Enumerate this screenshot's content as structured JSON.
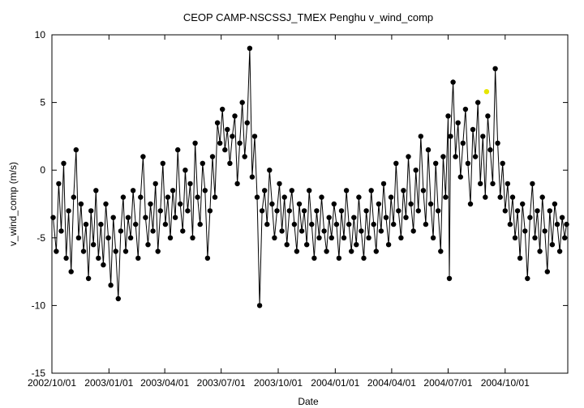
{
  "chart_data": {
    "type": "scatter",
    "title": "CEOP CAMP-NSCSSJ_TMEX Penghu  v_wind_comp",
    "xlabel": "Date",
    "ylabel": "v_wind_comp (m/s)",
    "ylim": [
      -15,
      10
    ],
    "xlim": [
      "2002-10-01",
      "2005-01-10"
    ],
    "y_ticks": [
      10,
      5,
      0,
      -5,
      -10,
      -15
    ],
    "x_ticks": [
      {
        "date": "2002-10-01",
        "label": "2002/10/01"
      },
      {
        "date": "2003-01-01",
        "label": "2003/01/01"
      },
      {
        "date": "2003-04-01",
        "label": "2003/04/01"
      },
      {
        "date": "2003-07-01",
        "label": "2003/07/01"
      },
      {
        "date": "2003-10-01",
        "label": "2003/10/01"
      },
      {
        "date": "2004-01-01",
        "label": "2004/01/01"
      },
      {
        "date": "2004-04-01",
        "label": "2004/04/01"
      },
      {
        "date": "2004-07-01",
        "label": "2004/07/01"
      },
      {
        "date": "2004-10-01",
        "label": "2004/10/01"
      }
    ],
    "grid": false,
    "series": [
      {
        "color": "#000000",
        "points": [
          [
            "2002-10-03",
            -3.5
          ],
          [
            "2002-10-08",
            -6.0
          ],
          [
            "2002-10-12",
            -1.0
          ],
          [
            "2002-10-16",
            -4.5
          ],
          [
            "2002-10-20",
            0.5
          ],
          [
            "2002-10-24",
            -6.5
          ],
          [
            "2002-10-28",
            -3.0
          ],
          [
            "2002-11-01",
            -7.5
          ],
          [
            "2002-11-05",
            -2.0
          ],
          [
            "2002-11-09",
            1.5
          ],
          [
            "2002-11-13",
            -5.0
          ],
          [
            "2002-11-17",
            -2.5
          ],
          [
            "2002-11-21",
            -6.0
          ],
          [
            "2002-11-25",
            -4.0
          ],
          [
            "2002-11-29",
            -8.0
          ],
          [
            "2002-12-03",
            -3.0
          ],
          [
            "2002-12-07",
            -5.5
          ],
          [
            "2002-12-11",
            -1.5
          ],
          [
            "2002-12-15",
            -6.5
          ],
          [
            "2002-12-19",
            -4.0
          ],
          [
            "2002-12-23",
            -7.0
          ],
          [
            "2002-12-27",
            -2.5
          ],
          [
            "2002-12-31",
            -5.0
          ],
          [
            "2003-01-04",
            -8.5
          ],
          [
            "2003-01-08",
            -3.5
          ],
          [
            "2003-01-12",
            -6.0
          ],
          [
            "2003-01-16",
            -9.5
          ],
          [
            "2003-01-20",
            -4.5
          ],
          [
            "2003-01-24",
            -2.0
          ],
          [
            "2003-01-28",
            -6.0
          ],
          [
            "2003-02-01",
            -3.5
          ],
          [
            "2003-02-05",
            -5.0
          ],
          [
            "2003-02-09",
            -1.5
          ],
          [
            "2003-02-13",
            -4.0
          ],
          [
            "2003-02-17",
            -6.5
          ],
          [
            "2003-02-21",
            -2.0
          ],
          [
            "2003-02-25",
            1.0
          ],
          [
            "2003-03-01",
            -3.5
          ],
          [
            "2003-03-05",
            -5.5
          ],
          [
            "2003-03-09",
            -2.5
          ],
          [
            "2003-03-13",
            -4.5
          ],
          [
            "2003-03-17",
            -1.0
          ],
          [
            "2003-03-21",
            -6.0
          ],
          [
            "2003-03-25",
            -3.0
          ],
          [
            "2003-03-29",
            0.5
          ],
          [
            "2003-04-02",
            -4.0
          ],
          [
            "2003-04-06",
            -2.0
          ],
          [
            "2003-04-10",
            -5.0
          ],
          [
            "2003-04-14",
            -1.5
          ],
          [
            "2003-04-18",
            -3.5
          ],
          [
            "2003-04-22",
            1.5
          ],
          [
            "2003-04-26",
            -2.5
          ],
          [
            "2003-04-30",
            -4.5
          ],
          [
            "2003-05-04",
            0.0
          ],
          [
            "2003-05-08",
            -3.0
          ],
          [
            "2003-05-12",
            -1.0
          ],
          [
            "2003-05-16",
            -5.0
          ],
          [
            "2003-05-20",
            2.0
          ],
          [
            "2003-05-24",
            -2.0
          ],
          [
            "2003-05-28",
            -4.0
          ],
          [
            "2003-06-01",
            0.5
          ],
          [
            "2003-06-05",
            -1.5
          ],
          [
            "2003-06-09",
            -6.5
          ],
          [
            "2003-06-13",
            -3.0
          ],
          [
            "2003-06-17",
            1.0
          ],
          [
            "2003-06-21",
            -2.0
          ],
          [
            "2003-06-25",
            3.5
          ],
          [
            "2003-06-29",
            2.0
          ],
          [
            "2003-07-03",
            4.5
          ],
          [
            "2003-07-07",
            1.5
          ],
          [
            "2003-07-11",
            3.0
          ],
          [
            "2003-07-15",
            0.5
          ],
          [
            "2003-07-19",
            2.5
          ],
          [
            "2003-07-23",
            4.0
          ],
          [
            "2003-07-27",
            -1.0
          ],
          [
            "2003-07-31",
            2.0
          ],
          [
            "2003-08-04",
            5.0
          ],
          [
            "2003-08-08",
            1.0
          ],
          [
            "2003-08-12",
            3.5
          ],
          [
            "2003-08-16",
            9.0
          ],
          [
            "2003-08-20",
            -0.5
          ],
          [
            "2003-08-24",
            2.5
          ],
          [
            "2003-08-28",
            -2.0
          ],
          [
            "2003-09-01",
            -10.0
          ],
          [
            "2003-09-05",
            -3.0
          ],
          [
            "2003-09-09",
            -1.5
          ],
          [
            "2003-09-13",
            -4.0
          ],
          [
            "2003-09-17",
            0.0
          ],
          [
            "2003-09-21",
            -2.5
          ],
          [
            "2003-09-25",
            -5.0
          ],
          [
            "2003-09-29",
            -3.0
          ],
          [
            "2003-10-03",
            -1.0
          ],
          [
            "2003-10-07",
            -4.5
          ],
          [
            "2003-10-11",
            -2.0
          ],
          [
            "2003-10-15",
            -5.5
          ],
          [
            "2003-10-19",
            -3.0
          ],
          [
            "2003-10-23",
            -1.5
          ],
          [
            "2003-10-27",
            -4.0
          ],
          [
            "2003-10-31",
            -6.0
          ],
          [
            "2003-11-04",
            -2.5
          ],
          [
            "2003-11-08",
            -4.5
          ],
          [
            "2003-11-12",
            -3.0
          ],
          [
            "2003-11-16",
            -5.5
          ],
          [
            "2003-11-20",
            -1.5
          ],
          [
            "2003-11-24",
            -4.0
          ],
          [
            "2003-11-28",
            -6.5
          ],
          [
            "2003-12-02",
            -3.0
          ],
          [
            "2003-12-06",
            -5.0
          ],
          [
            "2003-12-10",
            -2.0
          ],
          [
            "2003-12-14",
            -4.5
          ],
          [
            "2003-12-18",
            -6.0
          ],
          [
            "2003-12-22",
            -3.5
          ],
          [
            "2003-12-26",
            -5.0
          ],
          [
            "2003-12-30",
            -2.5
          ],
          [
            "2004-01-03",
            -4.0
          ],
          [
            "2004-01-07",
            -6.5
          ],
          [
            "2004-01-11",
            -3.0
          ],
          [
            "2004-01-15",
            -5.0
          ],
          [
            "2004-01-19",
            -1.5
          ],
          [
            "2004-01-23",
            -4.0
          ],
          [
            "2004-01-27",
            -6.0
          ],
          [
            "2004-01-31",
            -3.5
          ],
          [
            "2004-02-04",
            -5.5
          ],
          [
            "2004-02-08",
            -2.0
          ],
          [
            "2004-02-12",
            -4.5
          ],
          [
            "2004-02-16",
            -6.5
          ],
          [
            "2004-02-20",
            -3.0
          ],
          [
            "2004-02-24",
            -5.0
          ],
          [
            "2004-02-28",
            -1.5
          ],
          [
            "2004-03-03",
            -4.0
          ],
          [
            "2004-03-07",
            -6.0
          ],
          [
            "2004-03-11",
            -2.5
          ],
          [
            "2004-03-15",
            -4.5
          ],
          [
            "2004-03-19",
            -1.0
          ],
          [
            "2004-03-23",
            -3.5
          ],
          [
            "2004-03-27",
            -5.5
          ],
          [
            "2004-03-31",
            -2.0
          ],
          [
            "2004-04-04",
            -4.0
          ],
          [
            "2004-04-08",
            0.5
          ],
          [
            "2004-04-12",
            -3.0
          ],
          [
            "2004-04-16",
            -5.0
          ],
          [
            "2004-04-20",
            -1.5
          ],
          [
            "2004-04-24",
            -3.5
          ],
          [
            "2004-04-28",
            1.0
          ],
          [
            "2004-05-02",
            -2.5
          ],
          [
            "2004-05-06",
            -4.5
          ],
          [
            "2004-05-10",
            0.0
          ],
          [
            "2004-05-14",
            -3.0
          ],
          [
            "2004-05-18",
            2.5
          ],
          [
            "2004-05-22",
            -1.5
          ],
          [
            "2004-05-26",
            -4.0
          ],
          [
            "2004-05-30",
            1.5
          ],
          [
            "2004-06-03",
            -2.5
          ],
          [
            "2004-06-07",
            -5.0
          ],
          [
            "2004-06-11",
            0.5
          ],
          [
            "2004-06-15",
            -3.0
          ],
          [
            "2004-06-19",
            -6.0
          ],
          [
            "2004-06-23",
            1.0
          ],
          [
            "2004-06-27",
            -2.0
          ],
          [
            "2004-07-01",
            4.0
          ],
          [
            "2004-07-03",
            -8.0
          ],
          [
            "2004-07-05",
            2.5
          ],
          [
            "2004-07-09",
            6.5
          ],
          [
            "2004-07-13",
            1.0
          ],
          [
            "2004-07-17",
            3.5
          ],
          [
            "2004-07-21",
            -0.5
          ],
          [
            "2004-07-25",
            2.0
          ],
          [
            "2004-07-29",
            4.5
          ],
          [
            "2004-08-02",
            0.5
          ],
          [
            "2004-08-06",
            -2.5
          ],
          [
            "2004-08-10",
            3.0
          ],
          [
            "2004-08-14",
            1.0
          ],
          [
            "2004-08-18",
            5.0
          ],
          [
            "2004-08-22",
            -1.0
          ],
          [
            "2004-08-26",
            2.5
          ],
          [
            "2004-08-30",
            -2.0
          ],
          [
            "2004-09-03",
            4.0
          ],
          [
            "2004-09-07",
            1.5
          ],
          [
            "2004-09-11",
            -1.0
          ],
          [
            "2004-09-15",
            7.5
          ],
          [
            "2004-09-19",
            2.0
          ],
          [
            "2004-09-23",
            -2.0
          ],
          [
            "2004-09-27",
            0.5
          ],
          [
            "2004-10-01",
            -3.0
          ],
          [
            "2004-10-05",
            -1.0
          ],
          [
            "2004-10-09",
            -4.0
          ],
          [
            "2004-10-13",
            -2.0
          ],
          [
            "2004-10-17",
            -5.0
          ],
          [
            "2004-10-21",
            -3.0
          ],
          [
            "2004-10-25",
            -6.5
          ],
          [
            "2004-10-29",
            -2.5
          ],
          [
            "2004-11-02",
            -4.5
          ],
          [
            "2004-11-06",
            -8.0
          ],
          [
            "2004-11-10",
            -3.5
          ],
          [
            "2004-11-14",
            -1.0
          ],
          [
            "2004-11-18",
            -5.0
          ],
          [
            "2004-11-22",
            -3.0
          ],
          [
            "2004-11-26",
            -6.0
          ],
          [
            "2004-11-30",
            -2.0
          ],
          [
            "2004-12-04",
            -4.5
          ],
          [
            "2004-12-08",
            -7.5
          ],
          [
            "2004-12-12",
            -3.0
          ],
          [
            "2004-12-16",
            -5.5
          ],
          [
            "2004-12-20",
            -2.5
          ],
          [
            "2004-12-24",
            -4.0
          ],
          [
            "2004-12-28",
            -6.0
          ],
          [
            "2005-01-01",
            -3.5
          ],
          [
            "2005-01-05",
            -5.0
          ],
          [
            "2005-01-08",
            -4.0
          ]
        ]
      },
      {
        "color": "#e6e600",
        "points": [
          [
            "2004-09-01",
            5.8
          ]
        ]
      }
    ]
  }
}
